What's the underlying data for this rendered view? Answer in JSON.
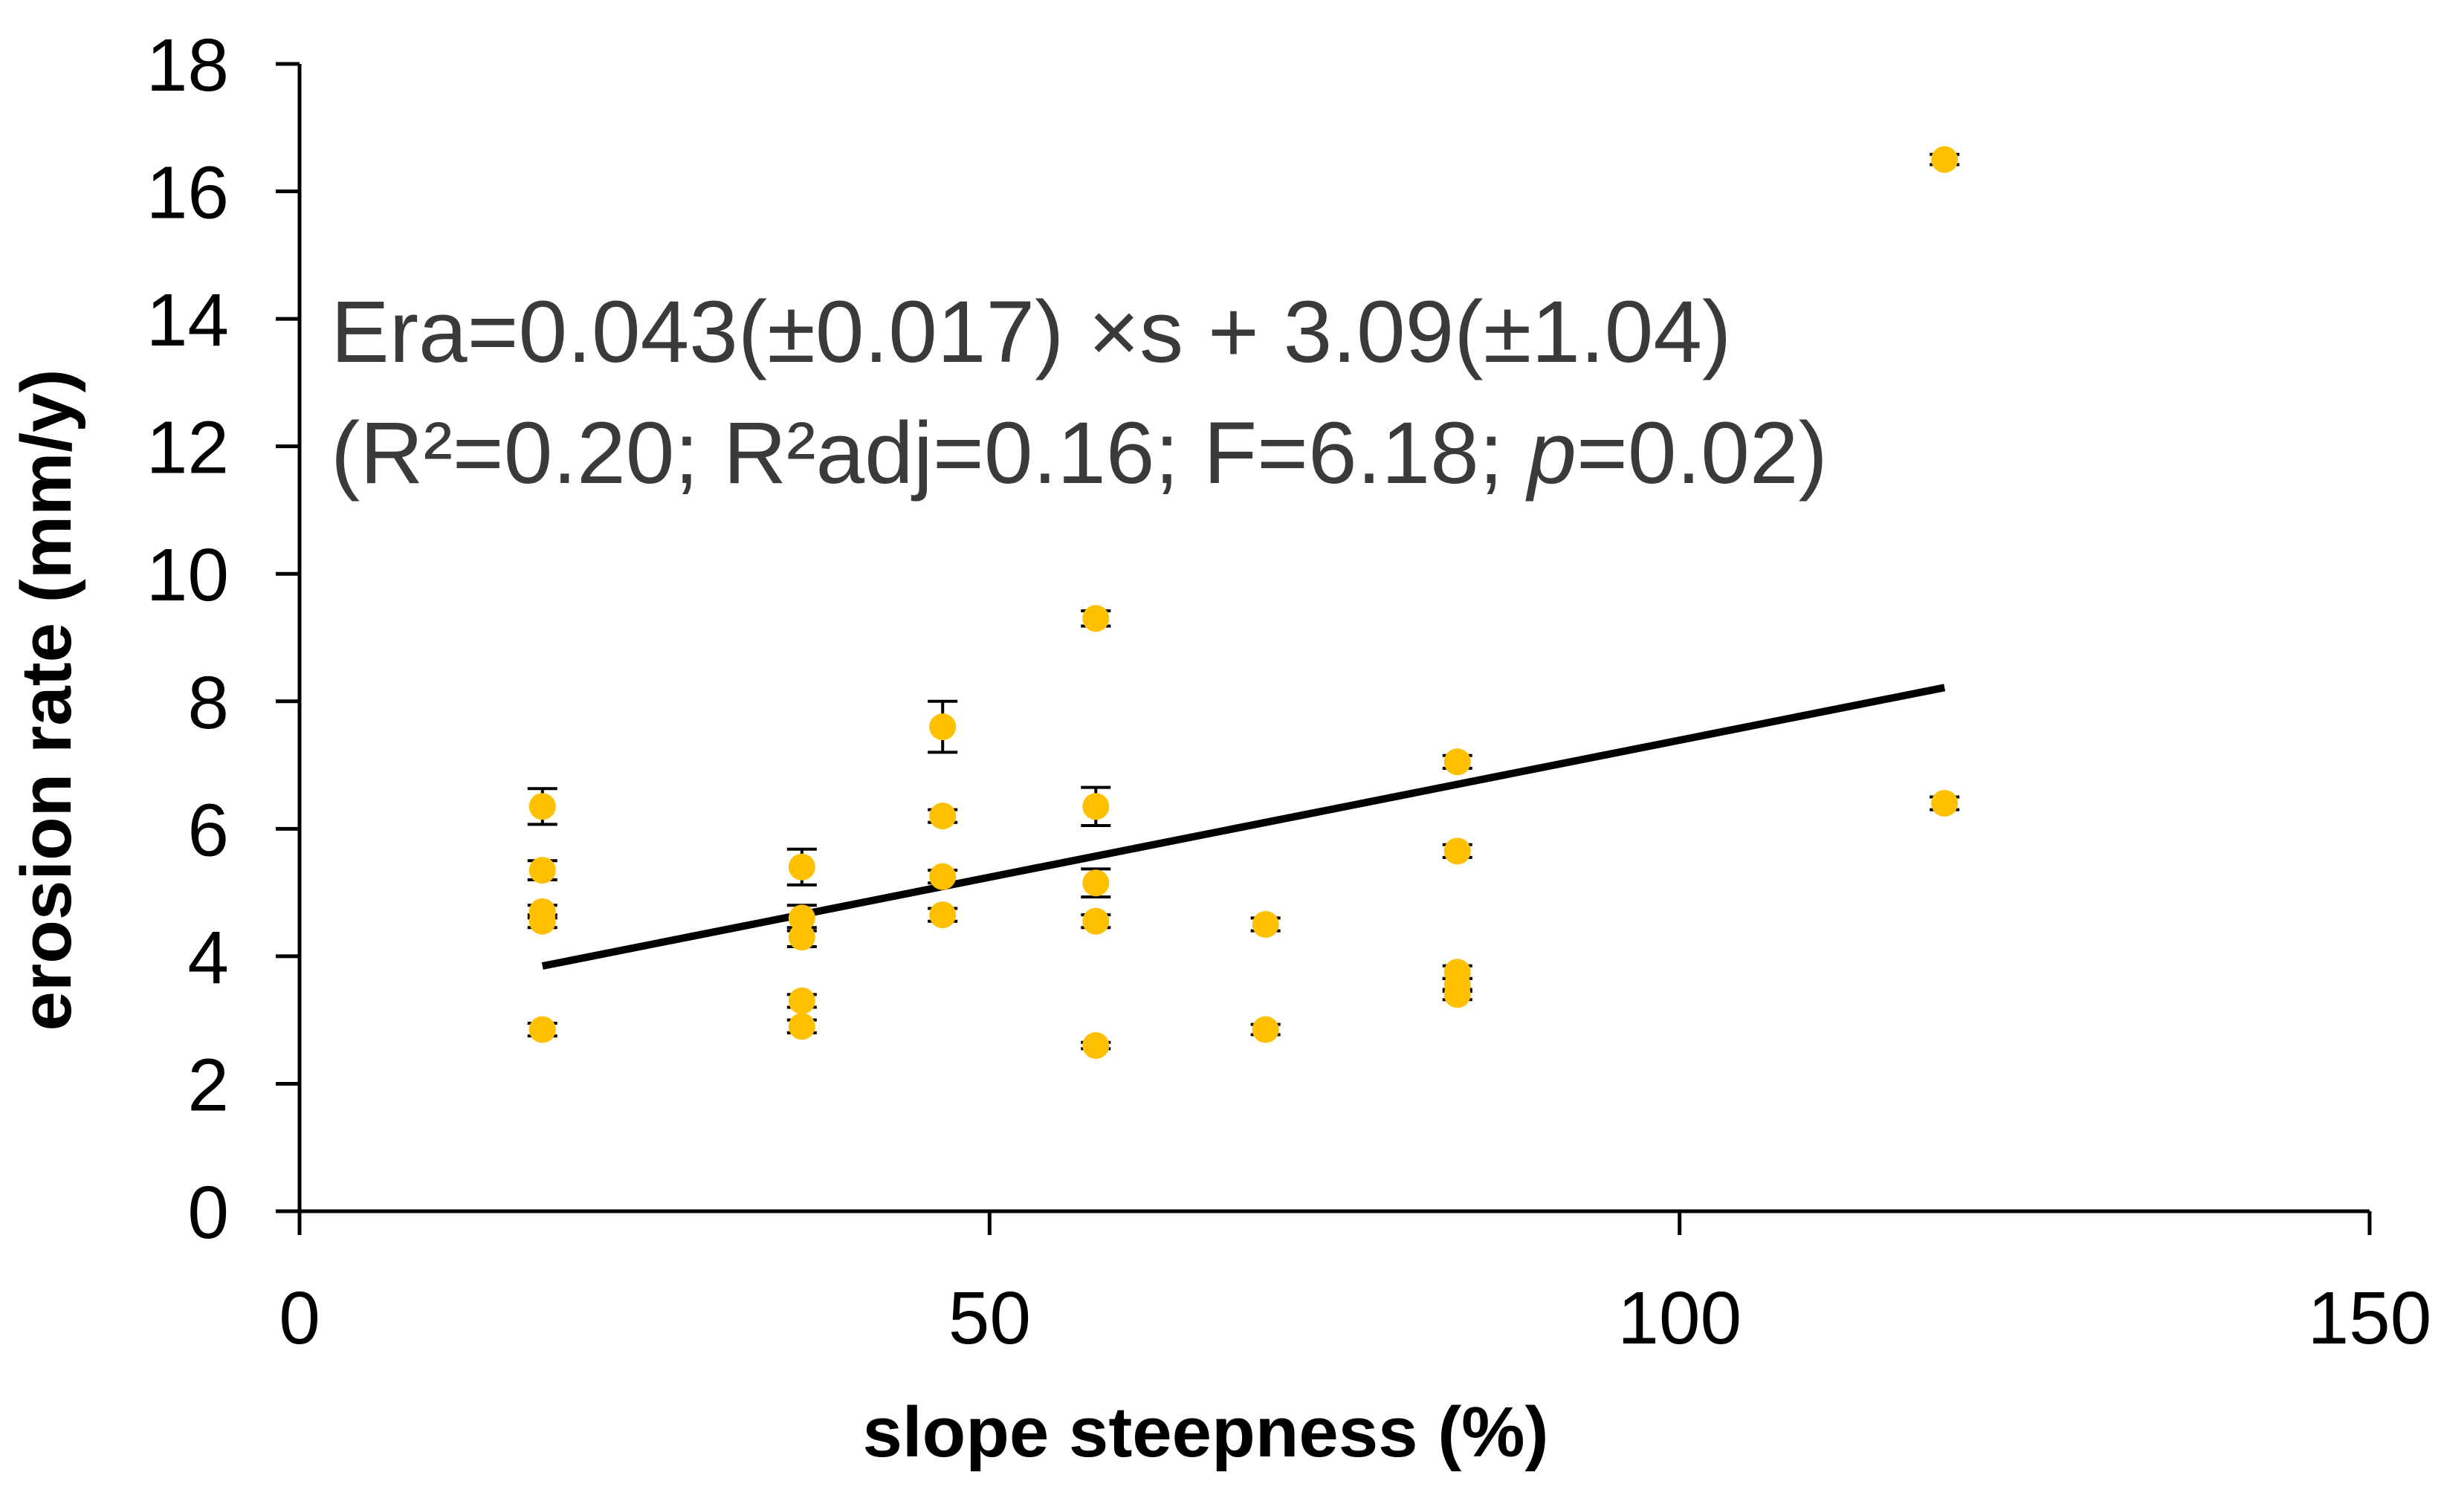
{
  "chart_data": {
    "type": "scatter",
    "title": "",
    "xlabel": "slope steepness (%)",
    "ylabel": "erosion rate (mm/y)",
    "xlim": [
      0,
      150
    ],
    "ylim": [
      0,
      18
    ],
    "xticks": [
      0,
      50,
      100,
      150
    ],
    "yticks": [
      0,
      2,
      4,
      6,
      8,
      10,
      12,
      14,
      16,
      18
    ],
    "grid": false,
    "legend": "none",
    "marker_color": "#FFC000",
    "errorbar_color": "#000000",
    "trendline_color": "#000000",
    "series": [
      {
        "name": "erosion rate",
        "points": [
          {
            "x": 17.6,
            "y": 6.35,
            "err": 0.28
          },
          {
            "x": 17.6,
            "y": 5.35,
            "err": 0.15
          },
          {
            "x": 17.6,
            "y": 4.7,
            "err": 0.1
          },
          {
            "x": 17.6,
            "y": 4.55,
            "err": 0.1
          },
          {
            "x": 17.6,
            "y": 2.85,
            "err": 0.1
          },
          {
            "x": 36.4,
            "y": 5.4,
            "err": 0.28
          },
          {
            "x": 36.4,
            "y": 4.6,
            "err": 0.2
          },
          {
            "x": 36.4,
            "y": 4.3,
            "err": 0.15
          },
          {
            "x": 36.4,
            "y": 3.3,
            "err": 0.1
          },
          {
            "x": 36.4,
            "y": 2.9,
            "err": 0.1
          },
          {
            "x": 46.6,
            "y": 7.6,
            "err": 0.4
          },
          {
            "x": 46.6,
            "y": 6.2,
            "err": 0.1
          },
          {
            "x": 46.6,
            "y": 5.25,
            "err": 0.1
          },
          {
            "x": 46.6,
            "y": 4.65,
            "err": 0.1
          },
          {
            "x": 57.7,
            "y": 9.3,
            "err": 0.12
          },
          {
            "x": 57.7,
            "y": 6.35,
            "err": 0.3
          },
          {
            "x": 57.7,
            "y": 5.15,
            "err": 0.22
          },
          {
            "x": 57.7,
            "y": 4.55,
            "err": 0.1
          },
          {
            "x": 57.7,
            "y": 2.6,
            "err": 0.05
          },
          {
            "x": 70.0,
            "y": 4.5,
            "err": 0.1
          },
          {
            "x": 70.0,
            "y": 2.85,
            "err": 0.08
          },
          {
            "x": 83.9,
            "y": 7.05,
            "err": 0.1
          },
          {
            "x": 83.9,
            "y": 5.65,
            "err": 0.1
          },
          {
            "x": 83.9,
            "y": 3.75,
            "err": 0.1
          },
          {
            "x": 83.9,
            "y": 3.55,
            "err": 0.1
          },
          {
            "x": 83.9,
            "y": 3.4,
            "err": 0.08
          },
          {
            "x": 119.2,
            "y": 16.5,
            "err": 0.08
          },
          {
            "x": 119.2,
            "y": 6.4,
            "err": 0.1
          }
        ]
      }
    ],
    "trendline": {
      "slope": 0.043,
      "intercept": 3.09,
      "x_range": [
        17.6,
        119.2
      ]
    },
    "annotation": {
      "line1": "Era=0.043(±0.017) ×s + 3.09(±1.04)",
      "line2_prefix": "(R²=0.20; R²adj=0.16; F=6.18; ",
      "line2_italic": "p",
      "line2_suffix": "=0.02)"
    }
  }
}
